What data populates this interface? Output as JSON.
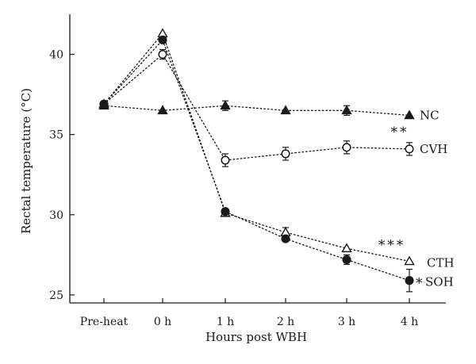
{
  "chart_data": {
    "type": "line",
    "title": "",
    "xlabel": "Hours post WBH",
    "ylabel": "Rectal temperature (°C)",
    "categories": [
      "Pre-heat",
      "0 h",
      "1 h",
      "2 h",
      "3 h",
      "4 h"
    ],
    "ylim": [
      24.5,
      42.5
    ],
    "yticks": [
      25,
      30,
      35,
      40
    ],
    "grid": false,
    "series": [
      {
        "name": "NC",
        "marker": "filled-triangle",
        "values": [
          36.8,
          36.5,
          36.8,
          36.5,
          36.5,
          36.2
        ],
        "errors": [
          0.0,
          0.0,
          0.3,
          0.0,
          0.3,
          0.0
        ],
        "annotation": ""
      },
      {
        "name": "CVH",
        "marker": "open-circle",
        "values": [
          36.9,
          40.0,
          33.4,
          33.8,
          34.2,
          34.1
        ],
        "errors": [
          0.0,
          0.3,
          0.4,
          0.4,
          0.4,
          0.4
        ],
        "annotation": "**"
      },
      {
        "name": "CTH",
        "marker": "open-triangle",
        "values": [
          36.9,
          41.3,
          30.1,
          28.9,
          27.9,
          27.1
        ],
        "errors": [
          0.0,
          0.0,
          0.0,
          0.3,
          0.0,
          0.0
        ],
        "annotation": "***"
      },
      {
        "name": "SOH",
        "marker": "filled-circle",
        "values": [
          36.9,
          40.9,
          30.2,
          28.5,
          27.2,
          25.9
        ],
        "errors": [
          0.0,
          0.0,
          0.0,
          0.0,
          0.3,
          0.7
        ],
        "annotation": "*"
      }
    ],
    "colors": {
      "ink": "#1a1a1a",
      "background": "#ffffff"
    }
  }
}
